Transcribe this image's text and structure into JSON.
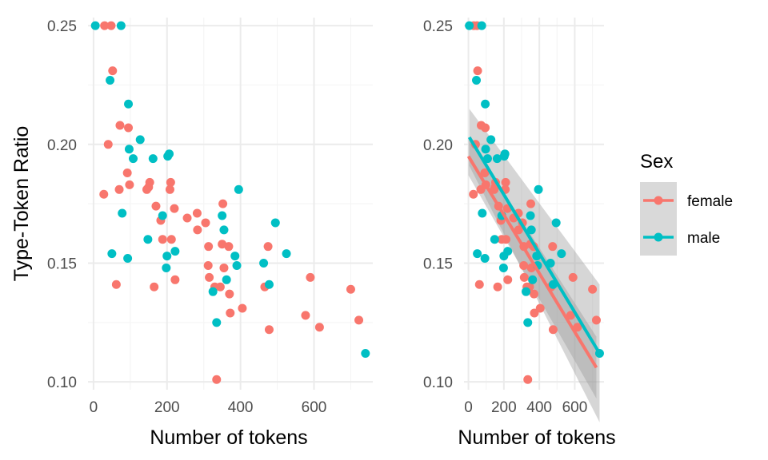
{
  "chart_data": [
    {
      "type": "scatter",
      "xlabel": "Number of tokens",
      "ylabel": "Type-Token Ratio",
      "xlim": [
        -15,
        760
      ],
      "ylim": [
        0.0967,
        0.2534
      ],
      "x_ticks": [
        0,
        200,
        400,
        600
      ],
      "x_tick_labels": [
        "0",
        "200",
        "400",
        "600"
      ],
      "y_ticks": [
        0.1,
        0.15,
        0.2,
        0.25
      ],
      "y_tick_labels": [
        "0.10",
        "0.15",
        "0.20",
        "0.25"
      ],
      "grid": true,
      "series": [
        {
          "name": "female",
          "color": "#F8766D",
          "points": [
            [
              30,
              0.25
            ],
            [
              48,
              0.25
            ],
            [
              52,
              0.231
            ],
            [
              40,
              0.2
            ],
            [
              28,
              0.179
            ],
            [
              62,
              0.141
            ],
            [
              72,
              0.208
            ],
            [
              70,
              0.181
            ],
            [
              95,
              0.207
            ],
            [
              92,
              0.188
            ],
            [
              98,
              0.183
            ],
            [
              145,
              0.181
            ],
            [
              150,
              0.182
            ],
            [
              153,
              0.184
            ],
            [
              170,
              0.174
            ],
            [
              183,
              0.168
            ],
            [
              188,
              0.16
            ],
            [
              208,
              0.181
            ],
            [
              210,
              0.184
            ],
            [
              212,
              0.16
            ],
            [
              165,
              0.14
            ],
            [
              220,
              0.173
            ],
            [
              222,
              0.143
            ],
            [
              255,
              0.169
            ],
            [
              282,
              0.171
            ],
            [
              283,
              0.164
            ],
            [
              305,
              0.167
            ],
            [
              313,
              0.157
            ],
            [
              312,
              0.149
            ],
            [
              315,
              0.144
            ],
            [
              330,
              0.14
            ],
            [
              345,
              0.14
            ],
            [
              335,
              0.101
            ],
            [
              350,
              0.158
            ],
            [
              352,
              0.175
            ],
            [
              355,
              0.148
            ],
            [
              368,
              0.157
            ],
            [
              370,
              0.137
            ],
            [
              372,
              0.129
            ],
            [
              405,
              0.131
            ],
            [
              466,
              0.14
            ],
            [
              475,
              0.157
            ],
            [
              478,
              0.122
            ],
            [
              577,
              0.128
            ],
            [
              590,
              0.144
            ],
            [
              615,
              0.123
            ],
            [
              700,
              0.139
            ],
            [
              722,
              0.126
            ]
          ]
        },
        {
          "name": "male",
          "color": "#00BFC4",
          "points": [
            [
              5,
              0.25
            ],
            [
              75,
              0.25
            ],
            [
              45,
              0.227
            ],
            [
              50,
              0.154
            ],
            [
              78,
              0.171
            ],
            [
              95,
              0.217
            ],
            [
              97,
              0.198
            ],
            [
              93,
              0.152
            ],
            [
              108,
              0.194
            ],
            [
              127,
              0.202
            ],
            [
              148,
              0.16
            ],
            [
              162,
              0.194
            ],
            [
              188,
              0.17
            ],
            [
              198,
              0.148
            ],
            [
              200,
              0.153
            ],
            [
              202,
              0.195
            ],
            [
              206,
              0.196
            ],
            [
              222,
              0.155
            ],
            [
              325,
              0.138
            ],
            [
              335,
              0.125
            ],
            [
              350,
              0.17
            ],
            [
              355,
              0.164
            ],
            [
              362,
              0.143
            ],
            [
              385,
              0.153
            ],
            [
              390,
              0.149
            ],
            [
              395,
              0.181
            ],
            [
              463,
              0.15
            ],
            [
              478,
              0.141
            ],
            [
              495,
              0.167
            ],
            [
              525,
              0.154
            ],
            [
              740,
              0.112
            ]
          ]
        }
      ]
    },
    {
      "type": "scatter",
      "xlabel": "Number of tokens",
      "ylabel": "",
      "xlim": [
        -25,
        765
      ],
      "ylim": [
        0.0967,
        0.2534
      ],
      "x_ticks": [
        0,
        200,
        400,
        600
      ],
      "x_tick_labels": [
        "0",
        "200",
        "400",
        "600"
      ],
      "y_ticks": [
        0.1,
        0.15,
        0.2,
        0.25
      ],
      "y_tick_labels": [
        "0.10",
        "0.15",
        "0.20",
        "0.25"
      ],
      "grid": true,
      "series": [
        {
          "name": "female",
          "color": "#F8766D",
          "points": [
            [
              30,
              0.25
            ],
            [
              48,
              0.25
            ],
            [
              52,
              0.231
            ],
            [
              40,
              0.2
            ],
            [
              28,
              0.179
            ],
            [
              62,
              0.141
            ],
            [
              72,
              0.208
            ],
            [
              70,
              0.181
            ],
            [
              95,
              0.207
            ],
            [
              92,
              0.188
            ],
            [
              98,
              0.183
            ],
            [
              145,
              0.181
            ],
            [
              150,
              0.182
            ],
            [
              153,
              0.184
            ],
            [
              170,
              0.174
            ],
            [
              183,
              0.168
            ],
            [
              188,
              0.16
            ],
            [
              208,
              0.181
            ],
            [
              210,
              0.184
            ],
            [
              212,
              0.16
            ],
            [
              165,
              0.14
            ],
            [
              220,
              0.173
            ],
            [
              222,
              0.143
            ],
            [
              255,
              0.169
            ],
            [
              282,
              0.171
            ],
            [
              283,
              0.164
            ],
            [
              305,
              0.167
            ],
            [
              313,
              0.157
            ],
            [
              312,
              0.149
            ],
            [
              315,
              0.144
            ],
            [
              330,
              0.14
            ],
            [
              345,
              0.14
            ],
            [
              335,
              0.101
            ],
            [
              350,
              0.158
            ],
            [
              352,
              0.175
            ],
            [
              355,
              0.148
            ],
            [
              368,
              0.157
            ],
            [
              370,
              0.137
            ],
            [
              372,
              0.129
            ],
            [
              405,
              0.131
            ],
            [
              466,
              0.14
            ],
            [
              475,
              0.157
            ],
            [
              478,
              0.122
            ],
            [
              577,
              0.128
            ],
            [
              590,
              0.144
            ],
            [
              615,
              0.123
            ],
            [
              700,
              0.139
            ],
            [
              722,
              0.126
            ]
          ],
          "fit": {
            "x": [
              0,
              722
            ],
            "y": [
              0.195,
              0.106
            ],
            "band_lower": [
              0.187,
              0.093
            ],
            "band_upper": [
              0.203,
              0.119
            ]
          }
        },
        {
          "name": "male",
          "color": "#00BFC4",
          "points": [
            [
              5,
              0.25
            ],
            [
              75,
              0.25
            ],
            [
              45,
              0.227
            ],
            [
              50,
              0.154
            ],
            [
              78,
              0.171
            ],
            [
              95,
              0.217
            ],
            [
              97,
              0.198
            ],
            [
              93,
              0.152
            ],
            [
              108,
              0.194
            ],
            [
              127,
              0.202
            ],
            [
              148,
              0.16
            ],
            [
              162,
              0.194
            ],
            [
              188,
              0.17
            ],
            [
              198,
              0.148
            ],
            [
              200,
              0.153
            ],
            [
              202,
              0.195
            ],
            [
              206,
              0.196
            ],
            [
              222,
              0.155
            ],
            [
              325,
              0.138
            ],
            [
              335,
              0.125
            ],
            [
              350,
              0.17
            ],
            [
              355,
              0.164
            ],
            [
              362,
              0.143
            ],
            [
              385,
              0.153
            ],
            [
              390,
              0.149
            ],
            [
              395,
              0.181
            ],
            [
              463,
              0.15
            ],
            [
              478,
              0.141
            ],
            [
              495,
              0.167
            ],
            [
              525,
              0.154
            ],
            [
              740,
              0.112
            ]
          ],
          "fit": {
            "x": [
              5,
              740
            ],
            "y": [
              0.203,
              0.112
            ],
            "band_lower": [
              0.191,
              0.083
            ],
            "band_upper": [
              0.215,
              0.141
            ]
          }
        }
      ]
    }
  ],
  "legend": {
    "title": "Sex",
    "placement": "right",
    "items": [
      {
        "label": "female",
        "color": "#F8766D"
      },
      {
        "label": "male",
        "color": "#00BFC4"
      }
    ]
  },
  "colors": {
    "panel_background": "#FFFFFF",
    "grid_major": "#EBEBEB",
    "grid_minor": "#F5F5F5",
    "band": "#999999",
    "legend_key": "#D9D9D9"
  }
}
